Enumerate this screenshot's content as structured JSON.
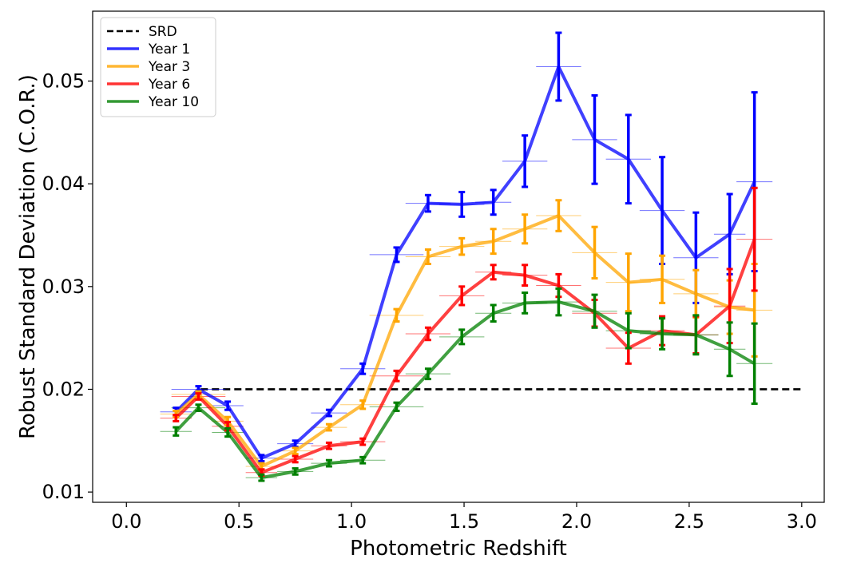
{
  "chart_data": {
    "type": "line",
    "title": "",
    "xlabel": "Photometric Redshift",
    "ylabel": "Robust Standard Deviation (C.O.R.)",
    "xlim": [
      -0.15,
      3.1
    ],
    "ylim": [
      0.009,
      0.0568
    ],
    "xticks": [
      0.0,
      0.5,
      1.0,
      1.5,
      2.0,
      2.5,
      3.0
    ],
    "xtick_labels": [
      "0.0",
      "0.5",
      "1.0",
      "1.5",
      "2.0",
      "2.5",
      "3.0"
    ],
    "yticks": [
      0.01,
      0.02,
      0.03,
      0.04,
      0.05
    ],
    "ytick_labels": [
      "0.01",
      "0.02",
      "0.03",
      "0.04",
      "0.05"
    ],
    "grid": false,
    "legend_position": "top-left",
    "reference_line": {
      "name": "SRD",
      "x": [
        0.33,
        3.0
      ],
      "y": 0.02,
      "color": "#000000",
      "style": "dashed"
    },
    "series": [
      {
        "name": "Year 1",
        "color": "#0000ff",
        "x": [
          0.22,
          0.32,
          0.45,
          0.6,
          0.75,
          0.9,
          1.05,
          1.2,
          1.34,
          1.49,
          1.63,
          1.77,
          1.92,
          2.08,
          2.23,
          2.38,
          2.53,
          2.68,
          2.79
        ],
        "y": [
          0.0178,
          0.02,
          0.0184,
          0.0133,
          0.0147,
          0.0177,
          0.022,
          0.0331,
          0.0381,
          0.038,
          0.0382,
          0.0422,
          0.0514,
          0.0443,
          0.0424,
          0.0374,
          0.0328,
          0.0351,
          0.0402
        ],
        "yerr": [
          0.0004,
          0.0003,
          0.0004,
          0.0003,
          0.0003,
          0.0003,
          0.0005,
          0.0007,
          0.0008,
          0.0012,
          0.0012,
          0.0025,
          0.0033,
          0.0043,
          0.0043,
          0.0052,
          0.0044,
          0.0039,
          0.0087
        ],
        "xerr": [
          0.07,
          0.12,
          0.07,
          0.07,
          0.08,
          0.08,
          0.1,
          0.12,
          0.1,
          0.1,
          0.08,
          0.1,
          0.1,
          0.1,
          0.1,
          0.1,
          0.1,
          0.07,
          0.08
        ]
      },
      {
        "name": "Year 3",
        "color": "#ffa500",
        "x": [
          0.22,
          0.32,
          0.45,
          0.6,
          0.75,
          0.9,
          1.05,
          1.2,
          1.34,
          1.49,
          1.63,
          1.77,
          1.92,
          2.08,
          2.23,
          2.38,
          2.53,
          2.68,
          2.79
        ],
        "y": [
          0.0176,
          0.0195,
          0.0169,
          0.0125,
          0.014,
          0.0163,
          0.0185,
          0.0272,
          0.0329,
          0.0339,
          0.0344,
          0.0356,
          0.0369,
          0.0333,
          0.0304,
          0.0307,
          0.0293,
          0.028,
          0.0277
        ],
        "yerr": [
          0.0003,
          0.0003,
          0.0004,
          0.0003,
          0.0003,
          0.0003,
          0.0004,
          0.0006,
          0.0007,
          0.0008,
          0.0012,
          0.0014,
          0.0015,
          0.0025,
          0.0028,
          0.0023,
          0.0023,
          0.0026,
          0.0045
        ],
        "xerr": [
          0.07,
          0.12,
          0.07,
          0.07,
          0.08,
          0.08,
          0.1,
          0.12,
          0.1,
          0.1,
          0.08,
          0.1,
          0.1,
          0.1,
          0.1,
          0.1,
          0.1,
          0.07,
          0.08
        ]
      },
      {
        "name": "Year 6",
        "color": "#ff0000",
        "x": [
          0.22,
          0.32,
          0.45,
          0.6,
          0.75,
          0.9,
          1.05,
          1.2,
          1.34,
          1.49,
          1.63,
          1.77,
          1.92,
          2.08,
          2.23,
          2.38,
          2.53,
          2.68,
          2.79
        ],
        "y": [
          0.0172,
          0.0193,
          0.0164,
          0.0119,
          0.0132,
          0.0145,
          0.0149,
          0.0213,
          0.0254,
          0.0291,
          0.0314,
          0.0311,
          0.0301,
          0.0274,
          0.024,
          0.0257,
          0.0253,
          0.0281,
          0.0346
        ],
        "yerr": [
          0.0003,
          0.0003,
          0.0004,
          0.0003,
          0.0003,
          0.0003,
          0.0003,
          0.0005,
          0.0006,
          0.0009,
          0.0007,
          0.001,
          0.0011,
          0.0013,
          0.0015,
          0.0014,
          0.0018,
          0.0036,
          0.005
        ],
        "xerr": [
          0.07,
          0.12,
          0.07,
          0.07,
          0.08,
          0.08,
          0.1,
          0.12,
          0.1,
          0.1,
          0.08,
          0.1,
          0.1,
          0.1,
          0.1,
          0.1,
          0.1,
          0.07,
          0.08
        ]
      },
      {
        "name": "Year 10",
        "color": "#008000",
        "x": [
          0.22,
          0.32,
          0.45,
          0.6,
          0.75,
          0.9,
          1.05,
          1.2,
          1.34,
          1.49,
          1.63,
          1.77,
          1.92,
          2.08,
          2.23,
          2.38,
          2.53,
          2.68,
          2.79
        ],
        "y": [
          0.0159,
          0.0182,
          0.0158,
          0.0114,
          0.012,
          0.0128,
          0.0131,
          0.0183,
          0.0215,
          0.0251,
          0.0274,
          0.0284,
          0.0285,
          0.0276,
          0.0257,
          0.0254,
          0.0253,
          0.0239,
          0.0225
        ],
        "yerr": [
          0.0004,
          0.0003,
          0.0004,
          0.0003,
          0.0003,
          0.0003,
          0.0003,
          0.0004,
          0.0005,
          0.0007,
          0.0008,
          0.001,
          0.0013,
          0.0016,
          0.0017,
          0.0015,
          0.0019,
          0.0026,
          0.0039
        ],
        "xerr": [
          0.07,
          0.12,
          0.07,
          0.07,
          0.08,
          0.08,
          0.1,
          0.12,
          0.1,
          0.1,
          0.08,
          0.1,
          0.1,
          0.1,
          0.1,
          0.1,
          0.1,
          0.07,
          0.08
        ]
      }
    ]
  }
}
